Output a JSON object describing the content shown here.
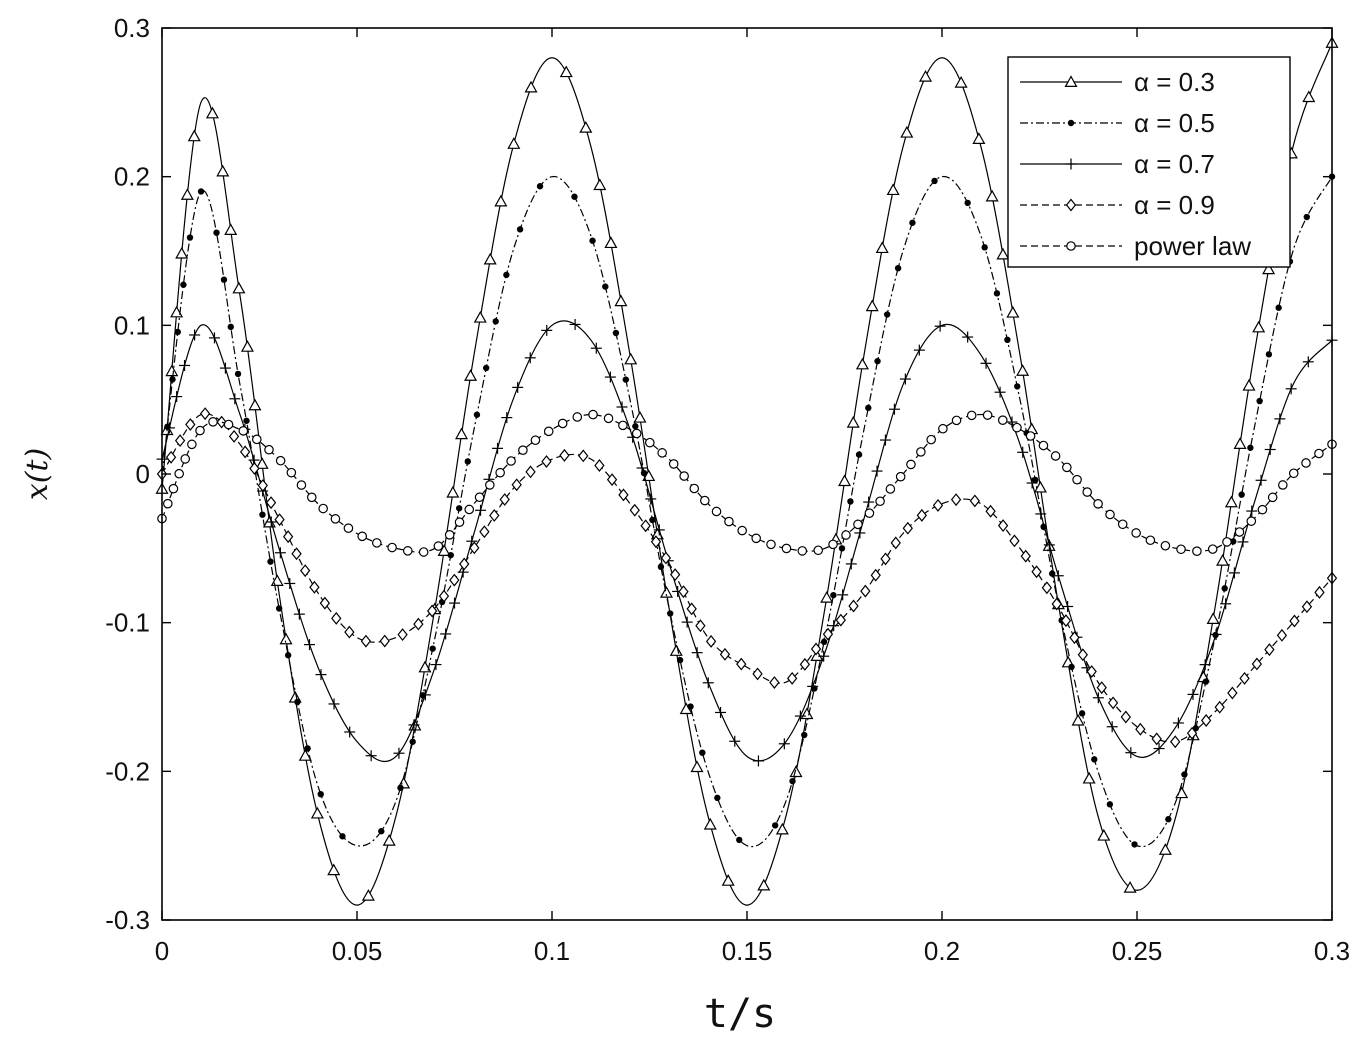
{
  "chart_data": {
    "type": "line",
    "title": "",
    "xlabel": "t/s",
    "ylabel": "x(t)",
    "xlim": [
      0,
      0.3
    ],
    "ylim": [
      -0.3,
      0.3
    ],
    "xticks": [
      0,
      0.05,
      0.1,
      0.15,
      0.2,
      0.25,
      0.3
    ],
    "xtick_labels": [
      "0",
      "0.05",
      "0.1",
      "0.15",
      "0.2",
      "0.25",
      "0.3"
    ],
    "yticks": [
      -0.3,
      -0.2,
      -0.1,
      0,
      0.1,
      0.2,
      0.3
    ],
    "ytick_labels": [
      "-0.3",
      "-0.2",
      "-0.1",
      "0",
      "0.1",
      "0.2",
      "0.3"
    ],
    "grid": false,
    "legend_position": "top-right",
    "x": [
      0,
      0.01,
      0.02,
      0.03,
      0.04,
      0.05,
      0.06,
      0.07,
      0.08,
      0.09,
      0.1,
      0.11,
      0.12,
      0.13,
      0.14,
      0.15,
      0.16,
      0.17,
      0.18,
      0.19,
      0.2,
      0.21,
      0.22,
      0.23,
      0.24,
      0.25,
      0.26,
      0.27,
      0.28,
      0.29,
      0.3
    ],
    "series": [
      {
        "name": "α = 0.3",
        "marker": "triangle",
        "line": "solid",
        "values": [
          -0.01,
          0.25,
          0.12,
          -0.08,
          -0.23,
          -0.29,
          -0.23,
          -0.09,
          0.08,
          0.22,
          0.28,
          0.22,
          0.08,
          -0.09,
          -0.23,
          -0.29,
          -0.23,
          -0.09,
          0.08,
          0.22,
          0.28,
          0.22,
          0.08,
          -0.09,
          -0.23,
          -0.28,
          -0.23,
          -0.09,
          0.08,
          0.22,
          0.29
        ]
      },
      {
        "name": "α = 0.5",
        "marker": "dot",
        "line": "dashdot",
        "values": [
          0.0,
          0.19,
          0.06,
          -0.09,
          -0.21,
          -0.25,
          -0.22,
          -0.11,
          0.03,
          0.15,
          0.2,
          0.16,
          0.05,
          -0.09,
          -0.2,
          -0.25,
          -0.22,
          -0.11,
          0.03,
          0.15,
          0.2,
          0.16,
          0.05,
          -0.09,
          -0.2,
          -0.25,
          -0.22,
          -0.11,
          0.03,
          0.15,
          0.2
        ]
      },
      {
        "name": "α = 0.7",
        "marker": "plus",
        "line": "solid",
        "values": [
          0.01,
          0.1,
          0.04,
          -0.05,
          -0.13,
          -0.18,
          -0.19,
          -0.13,
          -0.04,
          0.05,
          0.1,
          0.09,
          0.03,
          -0.06,
          -0.14,
          -0.19,
          -0.18,
          -0.12,
          -0.03,
          0.06,
          0.1,
          0.08,
          0.02,
          -0.07,
          -0.15,
          -0.19,
          -0.17,
          -0.11,
          -0.02,
          0.06,
          0.09
        ]
      },
      {
        "name": "α = 0.9",
        "marker": "diamond",
        "line": "dashed",
        "values": [
          0.0,
          0.04,
          0.02,
          -0.03,
          -0.08,
          -0.11,
          -0.11,
          -0.09,
          -0.05,
          -0.01,
          0.01,
          0.01,
          -0.02,
          -0.06,
          -0.11,
          -0.13,
          -0.14,
          -0.11,
          -0.08,
          -0.04,
          -0.02,
          -0.02,
          -0.05,
          -0.09,
          -0.14,
          -0.17,
          -0.18,
          -0.16,
          -0.13,
          -0.1,
          -0.07
        ]
      },
      {
        "name": "power law",
        "marker": "circle",
        "line": "dashed",
        "values": [
          -0.03,
          0.03,
          0.03,
          0.01,
          -0.02,
          -0.04,
          -0.05,
          -0.05,
          -0.02,
          0.01,
          0.03,
          0.04,
          0.03,
          0.01,
          -0.02,
          -0.04,
          -0.05,
          -0.05,
          -0.03,
          0.0,
          0.03,
          0.04,
          0.03,
          0.01,
          -0.02,
          -0.04,
          -0.05,
          -0.05,
          -0.03,
          0.0,
          0.02
        ]
      }
    ]
  }
}
